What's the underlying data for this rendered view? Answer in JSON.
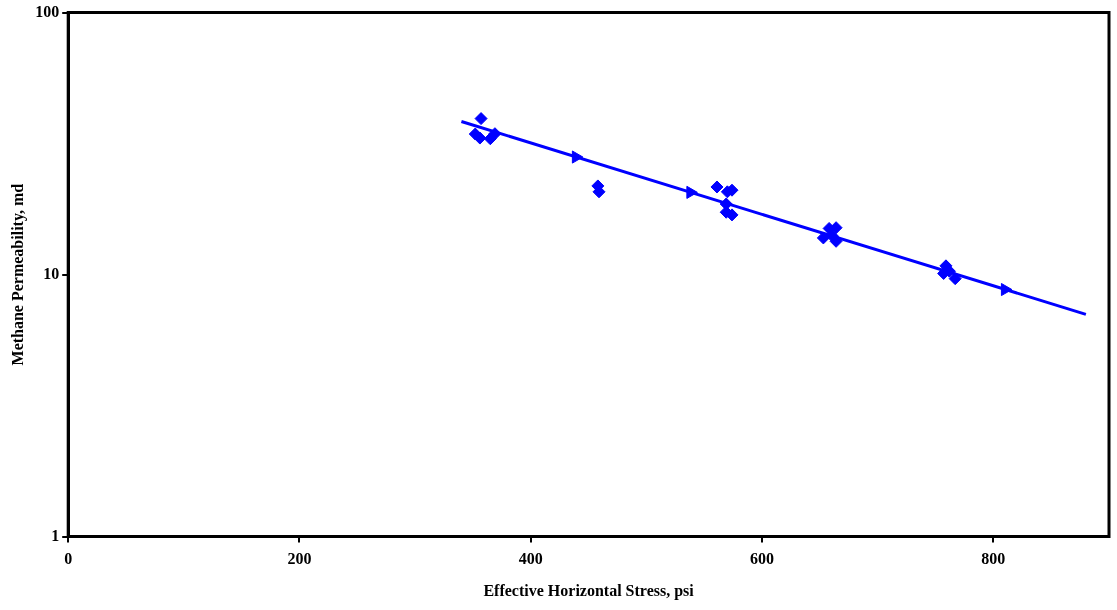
{
  "chart_data": {
    "type": "scatter",
    "xlabel": "Effective Horizontal Stress, psi",
    "ylabel": "Methane Permeability, md",
    "xlim": [
      0,
      900
    ],
    "xticks": [
      0,
      200,
      400,
      600,
      800
    ],
    "ylim": [
      1,
      100
    ],
    "yticks": [
      1,
      10,
      100
    ],
    "log": "y",
    "grid": false,
    "legend": false,
    "series": [
      {
        "marker": "diamond",
        "color": "#0000ff",
        "x": [
          357,
          352,
          356,
          365,
          369,
          458,
          459,
          561,
          570,
          574,
          569,
          569,
          574,
          658,
          664,
          653,
          664,
          661,
          759,
          762,
          757,
          767
        ],
        "values": [
          39.4,
          34.4,
          33.2,
          33.0,
          34.5,
          21.8,
          20.7,
          21.6,
          20.7,
          21.0,
          18.6,
          17.3,
          16.9,
          15.0,
          15.1,
          13.8,
          13.4,
          14.0,
          10.8,
          10.3,
          10.1,
          9.65
        ]
      },
      {
        "type": "line",
        "marker": "none",
        "line_style": "solid",
        "color": "#0000ff",
        "x": [
          340,
          880
        ],
        "values": [
          38.4,
          7.05
        ]
      },
      {
        "marker": "triangle",
        "color": "#0000ff",
        "x": [
          439,
          538,
          810
        ],
        "values": [
          28.1,
          20.6,
          8.77
        ]
      }
    ]
  }
}
